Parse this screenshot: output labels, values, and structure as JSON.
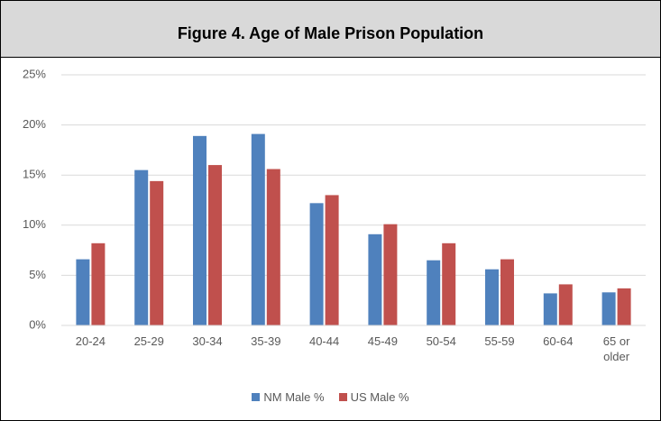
{
  "chart_data": {
    "type": "bar",
    "title": "Figure 4. Age of Male Prison Population",
    "categories": [
      "20-24",
      "25-29",
      "30-34",
      "35-39",
      "40-44",
      "45-49",
      "50-54",
      "55-59",
      "60-64",
      "65 or older"
    ],
    "series": [
      {
        "name": "NM Male %",
        "color": "#4f81bd",
        "values": [
          6.6,
          15.5,
          18.9,
          19.1,
          12.2,
          9.1,
          6.5,
          5.6,
          3.2,
          3.3
        ]
      },
      {
        "name": "US Male %",
        "color": "#c0504d",
        "values": [
          8.2,
          14.4,
          16.0,
          15.6,
          13.0,
          10.1,
          8.2,
          6.6,
          4.1,
          3.7
        ]
      }
    ],
    "ylim": [
      0,
      25
    ],
    "yticks": [
      {
        "value": 0,
        "label": "0%"
      },
      {
        "value": 5,
        "label": "5%"
      },
      {
        "value": 10,
        "label": "10%"
      },
      {
        "value": 15,
        "label": "15%"
      },
      {
        "value": 20,
        "label": "20%"
      },
      {
        "value": 25,
        "label": "25%"
      }
    ],
    "grid": true,
    "legend": "bottom"
  }
}
